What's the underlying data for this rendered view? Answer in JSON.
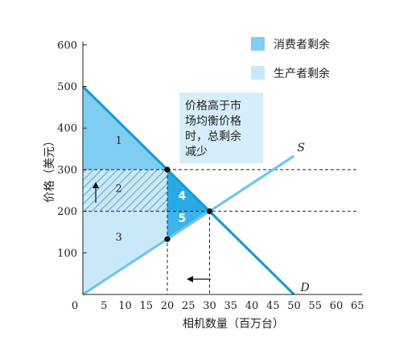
{
  "chart_data": {
    "type": "area",
    "xlabel": "相机数量（百万台）",
    "ylabel": "价格（美元）",
    "xlim": [
      0,
      65
    ],
    "ylim": [
      0,
      600
    ],
    "x_ticks": [
      "0",
      "5",
      "10",
      "15",
      "20",
      "25",
      "30",
      "35",
      "40",
      "45",
      "50",
      "55",
      "60",
      "65"
    ],
    "y_ticks": [
      "100",
      "200",
      "300",
      "400",
      "500",
      "600"
    ],
    "curves": [
      {
        "name": "D",
        "points": [
          [
            0,
            500
          ],
          [
            50,
            0
          ]
        ]
      },
      {
        "name": "S",
        "points": [
          [
            0,
            0
          ],
          [
            50,
            333
          ]
        ]
      }
    ],
    "equilibrium": {
      "x": 30,
      "y": 200
    },
    "price_floor": {
      "y": 300,
      "qd": 20
    },
    "supply_at_qd": 133,
    "regions": [
      {
        "label": "1"
      },
      {
        "label": "2"
      },
      {
        "label": "3"
      },
      {
        "label": "4"
      },
      {
        "label": "5"
      }
    ],
    "legend": [
      {
        "label": "消费者剩余",
        "color": "#7fcdf0"
      },
      {
        "label": "生产者剩余",
        "color": "#c9e8f8"
      }
    ],
    "annotation": [
      "价格高于市",
      "场均衡价格",
      "时，总剩余",
      "减少"
    ],
    "colors": {
      "consumer": "#7fcdf0",
      "producer": "#c9e8f8",
      "demand": "#1a9ad6",
      "supply": "#6cc6ee",
      "hatch": "#3b8fc0"
    }
  }
}
